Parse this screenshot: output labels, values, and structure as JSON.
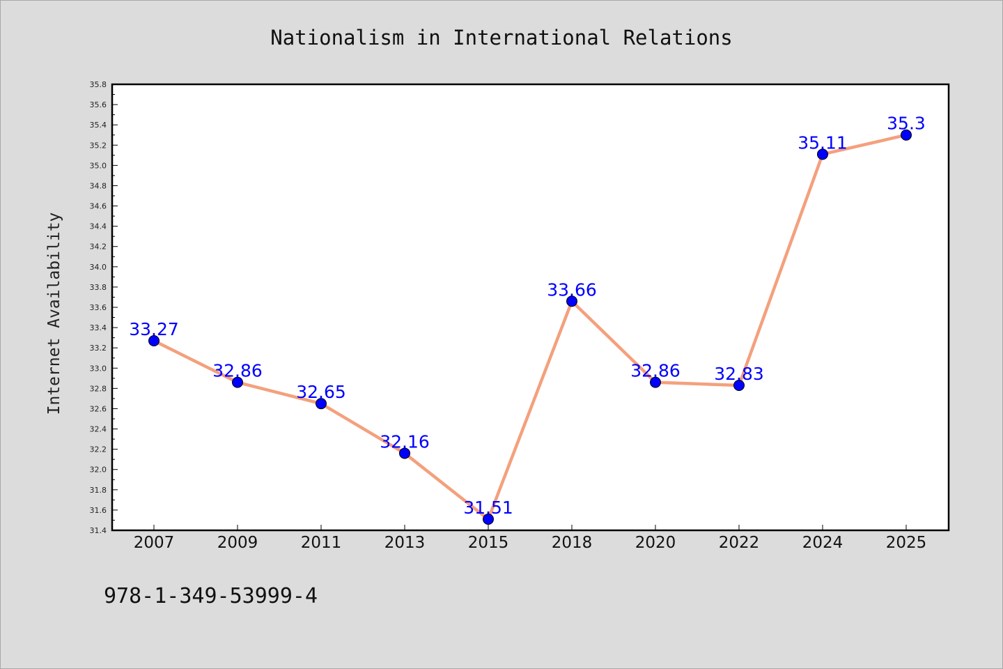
{
  "chart_data": {
    "type": "line",
    "title": "Nationalism in International Relations",
    "xlabel": "",
    "ylabel": "Internet Availability",
    "categories": [
      "2007",
      "2009",
      "2011",
      "2013",
      "2015",
      "2018",
      "2020",
      "2022",
      "2024",
      "2025"
    ],
    "values": [
      33.27,
      32.86,
      32.65,
      32.16,
      31.51,
      33.66,
      32.86,
      32.83,
      35.11,
      35.3
    ],
    "data_labels": [
      "33.27",
      "32.86",
      "32.65",
      "32.16",
      "31.51",
      "33.66",
      "32.86",
      "32.83",
      "35.11",
      "35.3"
    ],
    "ylim": [
      31.4,
      35.8
    ],
    "yticks": [
      "31.4",
      "31.6",
      "31.8",
      "32.0",
      "32.2",
      "32.4",
      "32.6",
      "32.8",
      "33.0",
      "33.2",
      "33.4",
      "33.6",
      "33.8",
      "34.0",
      "34.2",
      "34.4",
      "34.6",
      "34.8",
      "35.0",
      "35.2",
      "35.4",
      "35.6",
      "35.8"
    ],
    "grid": false,
    "line_color": "#f4a07d",
    "marker_color": "#0000ff",
    "label_color": "#0000ff"
  },
  "annotation": "978-1-349-53999-4"
}
